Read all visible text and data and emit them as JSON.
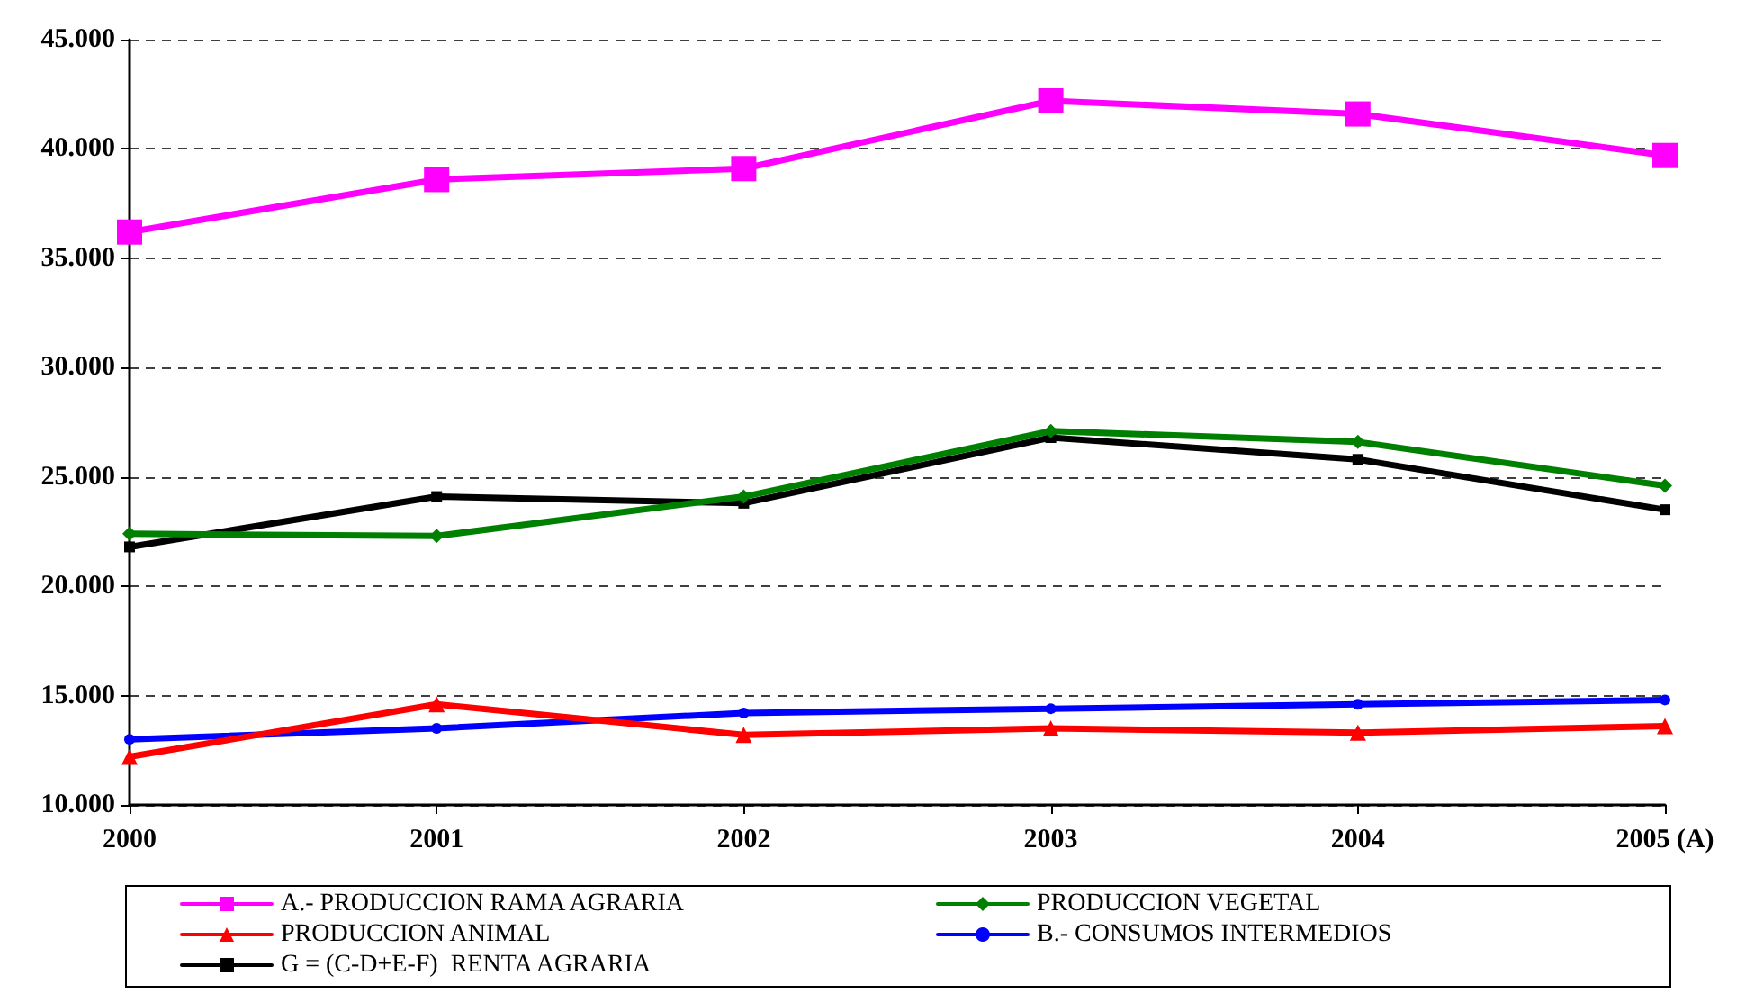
{
  "chart_data": {
    "type": "line",
    "categories": [
      "2000",
      "2001",
      "2002",
      "2003",
      "2004",
      "2005 (A)"
    ],
    "series": [
      {
        "name": "A.- PRODUCCION RAMA AGRARIA",
        "color": "#ff00ff",
        "marker": "square",
        "values": [
          36200,
          38600,
          39100,
          42200,
          41600,
          39700
        ]
      },
      {
        "name": "PRODUCCION VEGETAL",
        "color": "#008000",
        "marker": "diamond",
        "values": [
          22400,
          22300,
          24100,
          27100,
          26600,
          24600
        ]
      },
      {
        "name": "PRODUCCION ANIMAL",
        "color": "#ff0000",
        "marker": "triangle",
        "values": [
          12200,
          14600,
          13200,
          13500,
          13300,
          13600
        ]
      },
      {
        "name": "B.- CONSUMOS INTERMEDIOS",
        "color": "#0000ff",
        "marker": "circle",
        "values": [
          13000,
          13500,
          14200,
          14400,
          14600,
          14800
        ]
      },
      {
        "name": "G = (C-D+E-F)  RENTA AGRARIA",
        "color": "#000000",
        "marker": "square",
        "values": [
          21800,
          24100,
          23800,
          26800,
          25800,
          23500
        ]
      }
    ],
    "ylim": [
      10000,
      45000
    ],
    "yticks": [
      {
        "value": 10000,
        "label": "10.000"
      },
      {
        "value": 15000,
        "label": "15.000"
      },
      {
        "value": 20000,
        "label": "20.000"
      },
      {
        "value": 25000,
        "label": "25.000"
      },
      {
        "value": 30000,
        "label": "30.000"
      },
      {
        "value": 35000,
        "label": "35.000"
      },
      {
        "value": 40000,
        "label": "40.000"
      },
      {
        "value": 45000,
        "label": "45.000"
      }
    ],
    "grid": "y",
    "legend": "bottom",
    "line_style": "solid"
  }
}
